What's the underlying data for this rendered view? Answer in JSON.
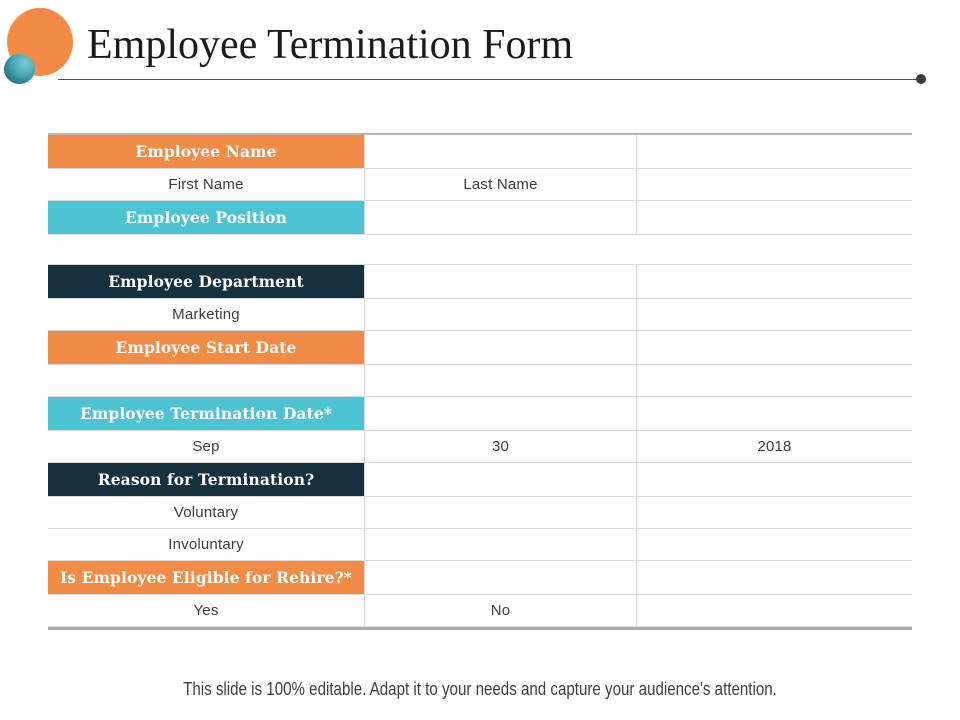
{
  "slide": {
    "title": "Employee Termination Form",
    "footer": "This slide is 100% editable. Adapt it to your needs and capture your audience's attention."
  },
  "colors": {
    "orange": "#F28B45",
    "teal": "#4EC3D1",
    "navy": "#17303D",
    "header_text": "#FFFFFF",
    "body_text": "#3D3D3D",
    "border_light": "#D9D9D9",
    "border_heavy": "#A9A9A9"
  },
  "table": {
    "sections": [
      {
        "rows": [
          {
            "kind": "header",
            "color": "orange",
            "cells": [
              "Employee Name",
              "",
              ""
            ]
          },
          {
            "kind": "value",
            "color": null,
            "cells": [
              "First Name",
              "Last Name",
              ""
            ]
          },
          {
            "kind": "header",
            "color": "teal",
            "cells": [
              "Employee Position",
              "",
              ""
            ]
          }
        ]
      },
      {
        "rows": [
          {
            "kind": "header",
            "color": "navy",
            "cells": [
              "Employee Department",
              "",
              ""
            ]
          },
          {
            "kind": "value",
            "color": null,
            "cells": [
              "Marketing",
              "",
              ""
            ]
          },
          {
            "kind": "header",
            "color": "orange",
            "cells": [
              "Employee Start Date",
              "",
              ""
            ]
          },
          {
            "kind": "value",
            "color": null,
            "cells": [
              "",
              "",
              ""
            ]
          },
          {
            "kind": "header",
            "color": "teal",
            "cells": [
              "Employee Termination Date*",
              "",
              ""
            ]
          },
          {
            "kind": "value",
            "color": null,
            "cells": [
              "Sep",
              "30",
              "2018"
            ]
          },
          {
            "kind": "header",
            "color": "navy",
            "cells": [
              "Reason for Termination?",
              "",
              ""
            ]
          },
          {
            "kind": "value",
            "color": null,
            "cells": [
              "Voluntary",
              "",
              ""
            ]
          },
          {
            "kind": "value",
            "color": null,
            "cells": [
              "Involuntary",
              "",
              ""
            ]
          },
          {
            "kind": "header",
            "color": "orange",
            "cells": [
              "Is Employee Eligible for Rehire?*",
              "",
              ""
            ]
          },
          {
            "kind": "value",
            "color": null,
            "cells": [
              "Yes",
              "No",
              ""
            ]
          }
        ]
      }
    ]
  }
}
